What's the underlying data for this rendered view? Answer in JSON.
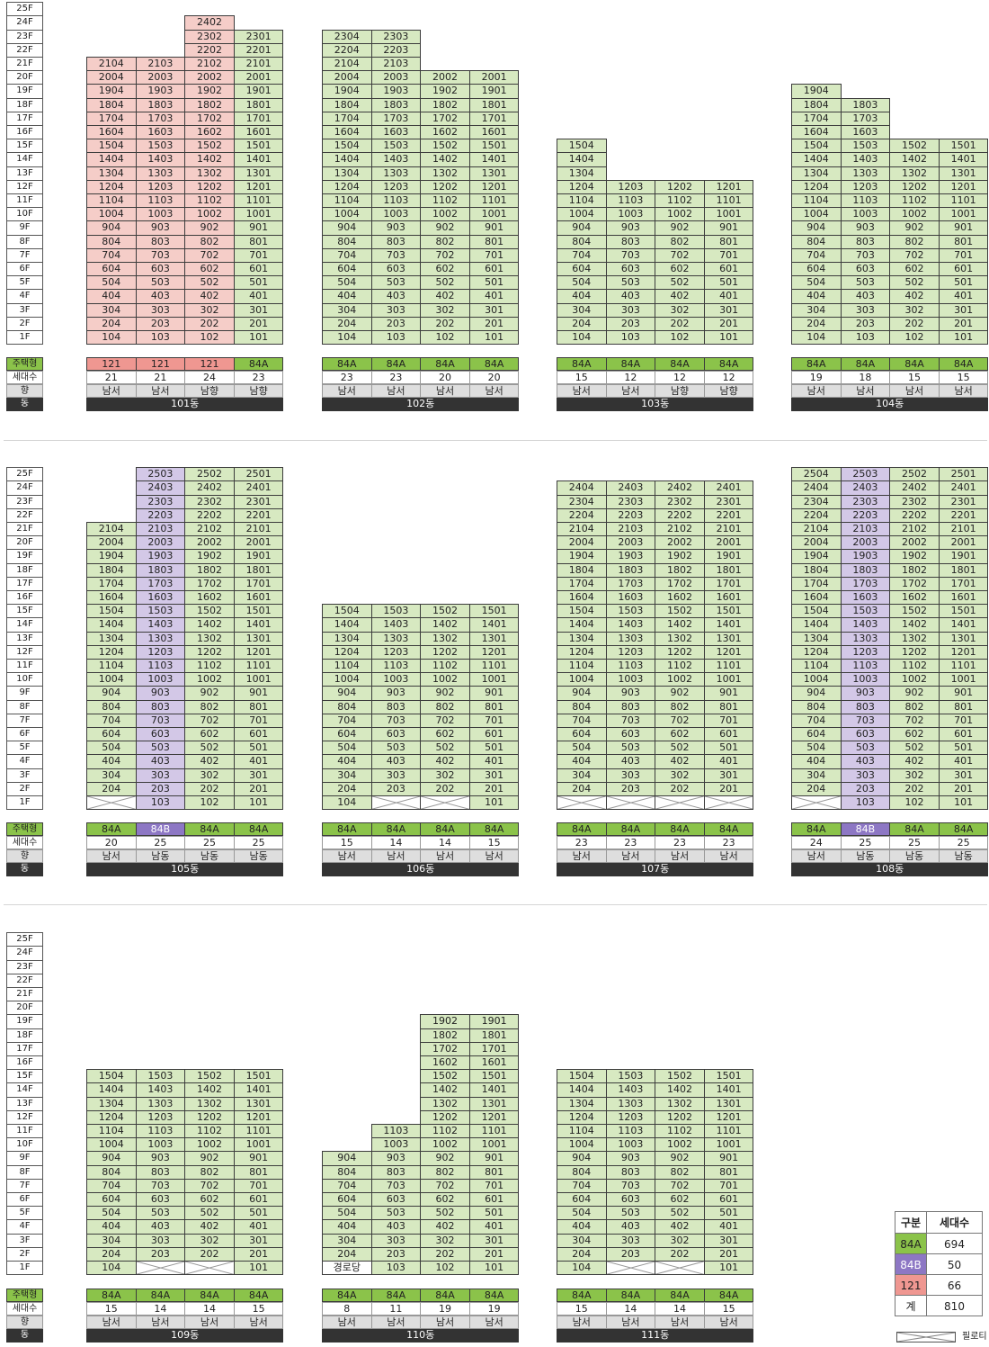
{
  "floor_labels": [
    "1F",
    "2F",
    "3F",
    "4F",
    "5F",
    "6F",
    "7F",
    "8F",
    "9F",
    "10F",
    "11F",
    "12F",
    "13F",
    "14F",
    "15F",
    "16F",
    "17F",
    "18F",
    "19F",
    "20F",
    "21F",
    "22F",
    "23F",
    "24F",
    "25F"
  ],
  "footer_headers": {
    "type": "주택형",
    "count": "세대수",
    "direction": "향",
    "dong": "동"
  },
  "buildings": [
    {
      "dong": "101동",
      "row": 0,
      "col": 0,
      "lines": [
        {
          "line": "04",
          "type": "121",
          "floors": [
            1,
            21
          ],
          "pilotis": [],
          "count": "21",
          "dir": "남서"
        },
        {
          "line": "03",
          "type": "121",
          "floors": [
            1,
            21
          ],
          "pilotis": [],
          "count": "21",
          "dir": "남서"
        },
        {
          "line": "02",
          "type": "121",
          "floors": [
            1,
            24
          ],
          "pilotis": [],
          "count": "24",
          "dir": "남향"
        },
        {
          "line": "01",
          "type": "84A",
          "floors": [
            1,
            23
          ],
          "pilotis": [],
          "count": "23",
          "dir": "남향"
        }
      ]
    },
    {
      "dong": "102동",
      "row": 0,
      "col": 1,
      "lines": [
        {
          "line": "04",
          "type": "84A",
          "floors": [
            1,
            23
          ],
          "pilotis": [],
          "count": "23",
          "dir": "남서"
        },
        {
          "line": "03",
          "type": "84A",
          "floors": [
            1,
            23
          ],
          "pilotis": [],
          "count": "23",
          "dir": "남서"
        },
        {
          "line": "02",
          "type": "84A",
          "floors": [
            1,
            20
          ],
          "pilotis": [],
          "count": "20",
          "dir": "남서"
        },
        {
          "line": "01",
          "type": "84A",
          "floors": [
            1,
            20
          ],
          "pilotis": [],
          "count": "20",
          "dir": "남서"
        }
      ]
    },
    {
      "dong": "103동",
      "row": 0,
      "col": 2,
      "lines": [
        {
          "line": "04",
          "type": "84A",
          "floors": [
            1,
            15
          ],
          "pilotis": [],
          "count": "15",
          "dir": "남서"
        },
        {
          "line": "03",
          "type": "84A",
          "floors": [
            1,
            12
          ],
          "pilotis": [],
          "count": "12",
          "dir": "남서"
        },
        {
          "line": "02",
          "type": "84A",
          "floors": [
            1,
            12
          ],
          "pilotis": [],
          "count": "12",
          "dir": "남향"
        },
        {
          "line": "01",
          "type": "84A",
          "floors": [
            1,
            12
          ],
          "pilotis": [],
          "count": "12",
          "dir": "남향"
        }
      ]
    },
    {
      "dong": "104동",
      "row": 0,
      "col": 3,
      "lines": [
        {
          "line": "04",
          "type": "84A",
          "floors": [
            1,
            19
          ],
          "pilotis": [],
          "count": "19",
          "dir": "남서"
        },
        {
          "line": "03",
          "type": "84A",
          "floors": [
            1,
            18
          ],
          "pilotis": [],
          "count": "18",
          "dir": "남서"
        },
        {
          "line": "02",
          "type": "84A",
          "floors": [
            1,
            15
          ],
          "pilotis": [],
          "count": "15",
          "dir": "남서"
        },
        {
          "line": "01",
          "type": "84A",
          "floors": [
            1,
            15
          ],
          "pilotis": [],
          "count": "15",
          "dir": "남서"
        }
      ]
    },
    {
      "dong": "105동",
      "row": 1,
      "col": 0,
      "lines": [
        {
          "line": "04",
          "type": "84A",
          "floors": [
            1,
            21
          ],
          "pilotis": [
            1
          ],
          "count": "20",
          "dir": "남서"
        },
        {
          "line": "03",
          "type": "84B",
          "floors": [
            1,
            25
          ],
          "pilotis": [],
          "count": "25",
          "dir": "남동"
        },
        {
          "line": "02",
          "type": "84A",
          "floors": [
            1,
            25
          ],
          "pilotis": [],
          "count": "25",
          "dir": "남동"
        },
        {
          "line": "01",
          "type": "84A",
          "floors": [
            1,
            25
          ],
          "pilotis": [],
          "count": "25",
          "dir": "남동"
        }
      ]
    },
    {
      "dong": "106동",
      "row": 1,
      "col": 1,
      "lines": [
        {
          "line": "04",
          "type": "84A",
          "floors": [
            1,
            15
          ],
          "pilotis": [],
          "count": "15",
          "dir": "남서"
        },
        {
          "line": "03",
          "type": "84A",
          "floors": [
            1,
            15
          ],
          "pilotis": [
            1
          ],
          "count": "14",
          "dir": "남서"
        },
        {
          "line": "02",
          "type": "84A",
          "floors": [
            1,
            15
          ],
          "pilotis": [
            1
          ],
          "count": "14",
          "dir": "남서"
        },
        {
          "line": "01",
          "type": "84A",
          "floors": [
            1,
            15
          ],
          "pilotis": [],
          "count": "15",
          "dir": "남서"
        }
      ]
    },
    {
      "dong": "107동",
      "row": 1,
      "col": 2,
      "lines": [
        {
          "line": "04",
          "type": "84A",
          "floors": [
            1,
            24
          ],
          "pilotis": [
            1
          ],
          "count": "23",
          "dir": "남서"
        },
        {
          "line": "03",
          "type": "84A",
          "floors": [
            1,
            24
          ],
          "pilotis": [
            1
          ],
          "count": "23",
          "dir": "남서"
        },
        {
          "line": "02",
          "type": "84A",
          "floors": [
            1,
            24
          ],
          "pilotis": [
            1
          ],
          "count": "23",
          "dir": "남서"
        },
        {
          "line": "01",
          "type": "84A",
          "floors": [
            1,
            24
          ],
          "pilotis": [
            1
          ],
          "count": "23",
          "dir": "남서"
        }
      ]
    },
    {
      "dong": "108동",
      "row": 1,
      "col": 3,
      "lines": [
        {
          "line": "04",
          "type": "84A",
          "floors": [
            1,
            25
          ],
          "pilotis": [
            1
          ],
          "count": "24",
          "dir": "남서"
        },
        {
          "line": "03",
          "type": "84B",
          "floors": [
            1,
            25
          ],
          "pilotis": [],
          "count": "25",
          "dir": "남동"
        },
        {
          "line": "02",
          "type": "84A",
          "floors": [
            1,
            25
          ],
          "pilotis": [],
          "count": "25",
          "dir": "남동"
        },
        {
          "line": "01",
          "type": "84A",
          "floors": [
            1,
            25
          ],
          "pilotis": [],
          "count": "25",
          "dir": "남동"
        }
      ]
    },
    {
      "dong": "109동",
      "row": 2,
      "col": 0,
      "lines": [
        {
          "line": "04",
          "type": "84A",
          "floors": [
            1,
            15
          ],
          "pilotis": [],
          "count": "15",
          "dir": "남서"
        },
        {
          "line": "03",
          "type": "84A",
          "floors": [
            1,
            15
          ],
          "pilotis": [
            1
          ],
          "count": "14",
          "dir": "남서"
        },
        {
          "line": "02",
          "type": "84A",
          "floors": [
            1,
            15
          ],
          "pilotis": [
            1
          ],
          "count": "14",
          "dir": "남서"
        },
        {
          "line": "01",
          "type": "84A",
          "floors": [
            1,
            15
          ],
          "pilotis": [],
          "count": "15",
          "dir": "남서"
        }
      ]
    },
    {
      "dong": "110동",
      "row": 2,
      "col": 1,
      "lines": [
        {
          "line": "04",
          "type": "84A",
          "floors": [
            1,
            9
          ],
          "pilotis": [],
          "special": {
            "1": "경로당"
          },
          "count": "8",
          "dir": "남서"
        },
        {
          "line": "03",
          "type": "84A",
          "floors": [
            1,
            11
          ],
          "pilotis": [],
          "count": "11",
          "dir": "남서"
        },
        {
          "line": "02",
          "type": "84A",
          "floors": [
            1,
            19
          ],
          "pilotis": [],
          "count": "19",
          "dir": "남서"
        },
        {
          "line": "01",
          "type": "84A",
          "floors": [
            1,
            19
          ],
          "pilotis": [],
          "count": "19",
          "dir": "남서"
        }
      ]
    },
    {
      "dong": "111동",
      "row": 2,
      "col": 2,
      "lines": [
        {
          "line": "04",
          "type": "84A",
          "floors": [
            1,
            15
          ],
          "pilotis": [],
          "count": "15",
          "dir": "남서"
        },
        {
          "line": "03",
          "type": "84A",
          "floors": [
            1,
            15
          ],
          "pilotis": [
            1
          ],
          "count": "14",
          "dir": "남서"
        },
        {
          "line": "02",
          "type": "84A",
          "floors": [
            1,
            15
          ],
          "pilotis": [
            1
          ],
          "count": "14",
          "dir": "남서"
        },
        {
          "line": "01",
          "type": "84A",
          "floors": [
            1,
            15
          ],
          "pilotis": [],
          "count": "15",
          "dir": "남서"
        }
      ]
    }
  ],
  "legend": {
    "header": [
      "구분",
      "세대수"
    ],
    "rows": [
      {
        "type": "84A",
        "count": "694",
        "color": "#8bc34a"
      },
      {
        "type": "84B",
        "count": "50",
        "color": "#8d77c4"
      },
      {
        "type": "121",
        "count": "66",
        "color": "#ef9791"
      },
      {
        "type": "계",
        "count": "810",
        "color": "#ffffff"
      }
    ],
    "pilotis_label": "필로티"
  }
}
